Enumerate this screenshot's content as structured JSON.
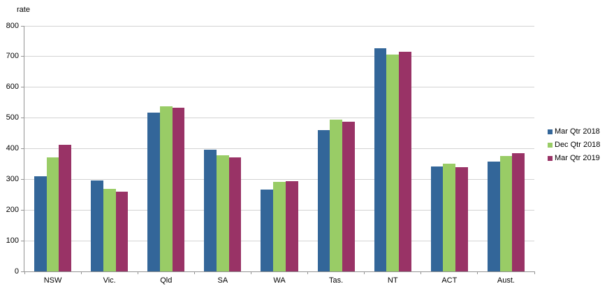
{
  "chart_data": {
    "type": "bar",
    "title": "",
    "ylabel": "rate",
    "xlabel": "",
    "categories": [
      "NSW",
      "Vic.",
      "Qld",
      "SA",
      "WA",
      "Tas.",
      "NT",
      "ACT",
      "Aust."
    ],
    "series": [
      {
        "name": "Mar Qtr 2018",
        "color": "#336699",
        "values": [
          309,
          297,
          518,
          397,
          267,
          461,
          726,
          342,
          358
        ]
      },
      {
        "name": "Dec Qtr 2018",
        "color": "#99CC66",
        "values": [
          371,
          270,
          538,
          379,
          292,
          495,
          707,
          350,
          377
        ]
      },
      {
        "name": "Mar Qtr 2019",
        "color": "#993366",
        "values": [
          412,
          260,
          534,
          371,
          295,
          488,
          716,
          340,
          386
        ]
      }
    ],
    "ylim": [
      0,
      800
    ],
    "ytick_interval": 100,
    "ytick_labels": [
      "0",
      "100",
      "200",
      "300",
      "400",
      "500",
      "600",
      "700",
      "800"
    ],
    "grid": true,
    "legend_position": "right"
  },
  "colors": {
    "background": "#ffffff",
    "gridline": "#d3d3d3",
    "axis": "#949494",
    "text": "#000000"
  }
}
